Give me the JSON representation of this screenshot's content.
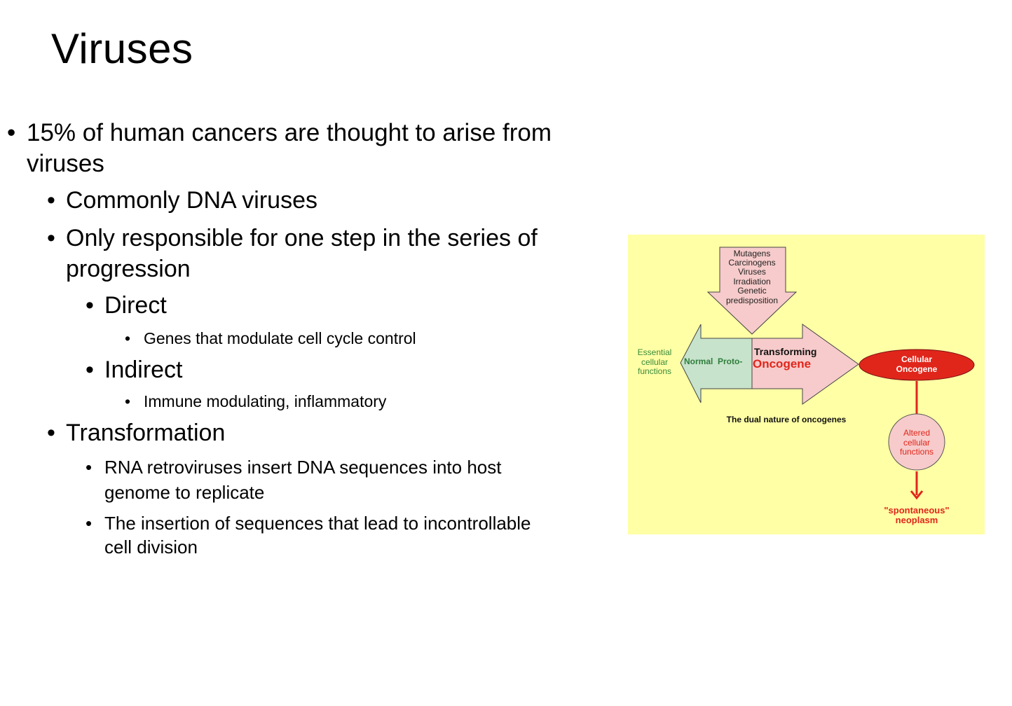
{
  "slide": {
    "title": "Viruses"
  },
  "bullets": {
    "b1_line1": "15% of human cancers are thought to arise from",
    "b1_line2": "viruses",
    "b1_1": "Commonly DNA viruses",
    "b1_2_line1": "Only responsible for one step in the series of",
    "b1_2_line2": "progression",
    "b1_2_1": "Direct",
    "b1_2_1_1": "Genes that modulate cell cycle control",
    "b1_2_2": "Indirect",
    "b1_2_2_1": "Immune modulating, inflammatory",
    "b1_3": "Transformation",
    "b1_3_1_line1": "RNA retroviruses insert DNA sequences into host",
    "b1_3_1_line2": "genome to replicate",
    "b1_3_2_line1": "The insertion of sequences that lead to incontrollable",
    "b1_3_2_line2": "cell division",
    "bullet_char": "•"
  },
  "figure": {
    "down_arrow_lines": [
      "Mutagens",
      "Carcinogens",
      "Viruses",
      "Irradiation",
      "Genetic",
      "predisposition"
    ],
    "essential_lines": [
      "Essential",
      "cellular",
      "functions"
    ],
    "normal_proto": "Normal  Proto-",
    "transforming": "Transforming",
    "oncogene": "Oncogene",
    "cellular_oncogene_lines": [
      "Cellular",
      "Oncogene"
    ],
    "altered_lines": [
      "Altered",
      "cellular",
      "functions"
    ],
    "caption": "The dual nature of oncogenes",
    "neoplasm_lines": [
      "\"spontaneous\"",
      "neoplasm"
    ],
    "colors": {
      "background": "#ffffa5",
      "pink": "#f7cbcb",
      "green": "#c7e3cc",
      "red": "#e0261b",
      "green_text": "#3a8a3a"
    }
  }
}
